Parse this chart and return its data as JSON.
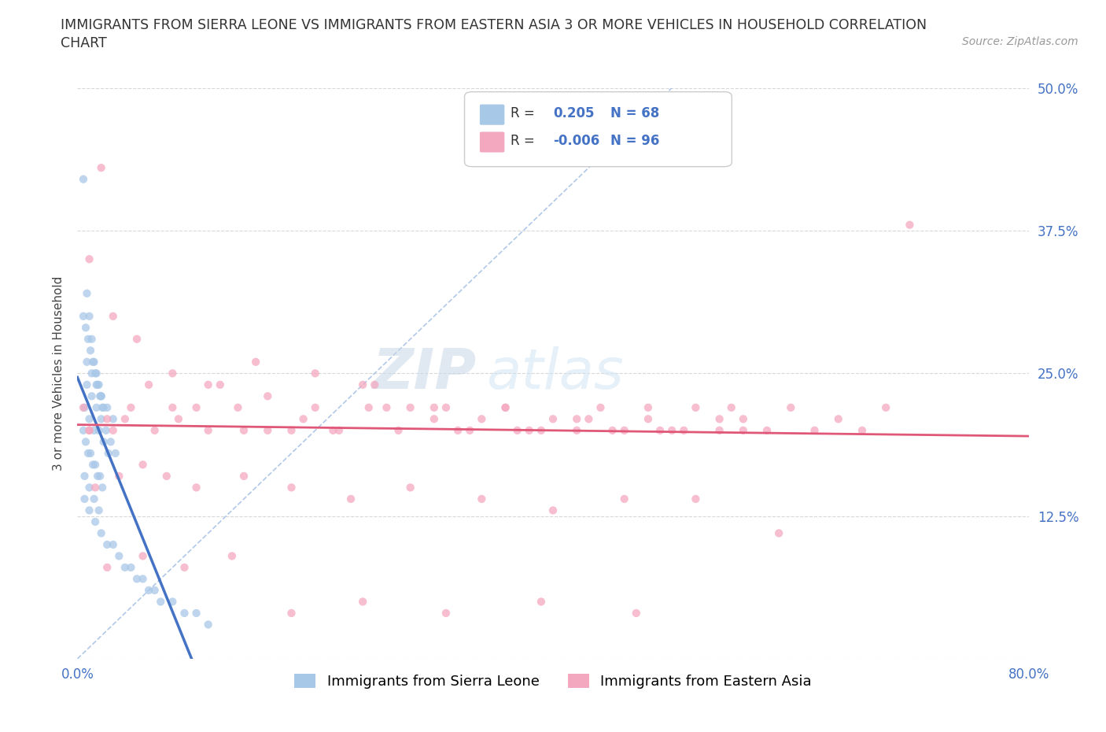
{
  "title_line1": "IMMIGRANTS FROM SIERRA LEONE VS IMMIGRANTS FROM EASTERN ASIA 3 OR MORE VEHICLES IN HOUSEHOLD CORRELATION",
  "title_line2": "CHART",
  "source": "Source: ZipAtlas.com",
  "ylabel": "3 or more Vehicles in Household",
  "xlim": [
    0.0,
    0.8
  ],
  "ylim": [
    0.0,
    0.5
  ],
  "xticks": [
    0.0,
    0.1,
    0.2,
    0.3,
    0.4,
    0.5,
    0.6,
    0.7,
    0.8
  ],
  "xticklabels_show": {
    "0": "0.0%",
    "8": "80.0%"
  },
  "yticks": [
    0.0,
    0.125,
    0.25,
    0.375,
    0.5
  ],
  "yticklabels_right": [
    "",
    "12.5%",
    "25.0%",
    "37.5%",
    "50.0%"
  ],
  "color_blue": "#a8c8e8",
  "color_pink": "#f4a8c0",
  "trend_blue": "#4472c4",
  "trend_pink": "#e05878",
  "R_blue": 0.205,
  "N_blue": 68,
  "R_pink": -0.006,
  "N_pink": 96,
  "legend_label_blue": "Immigrants from Sierra Leone",
  "legend_label_pink": "Immigrants from Eastern Asia",
  "watermark_zip": "ZIP",
  "watermark_atlas": "atlas",
  "background_color": "#ffffff",
  "grid_color": "#d8d8d8",
  "scatter_alpha": 0.75,
  "scatter_size": 55,
  "blue_x": [
    0.005,
    0.008,
    0.01,
    0.012,
    0.014,
    0.016,
    0.018,
    0.02,
    0.022,
    0.005,
    0.007,
    0.009,
    0.011,
    0.013,
    0.015,
    0.017,
    0.019,
    0.021,
    0.006,
    0.01,
    0.014,
    0.018,
    0.022,
    0.026,
    0.008,
    0.012,
    0.016,
    0.02,
    0.024,
    0.028,
    0.032,
    0.006,
    0.01,
    0.015,
    0.02,
    0.025,
    0.03,
    0.035,
    0.04,
    0.045,
    0.05,
    0.055,
    0.06,
    0.065,
    0.07,
    0.08,
    0.09,
    0.1,
    0.11,
    0.008,
    0.012,
    0.016,
    0.02,
    0.025,
    0.03,
    0.005,
    0.007,
    0.009,
    0.011,
    0.013,
    0.015,
    0.017,
    0.019,
    0.021,
    0.006,
    0.01,
    0.014,
    0.018
  ],
  "blue_y": [
    0.42,
    0.32,
    0.3,
    0.28,
    0.26,
    0.25,
    0.24,
    0.23,
    0.22,
    0.2,
    0.19,
    0.18,
    0.18,
    0.17,
    0.17,
    0.16,
    0.16,
    0.15,
    0.22,
    0.21,
    0.2,
    0.2,
    0.19,
    0.18,
    0.24,
    0.23,
    0.22,
    0.21,
    0.2,
    0.19,
    0.18,
    0.14,
    0.13,
    0.12,
    0.11,
    0.1,
    0.1,
    0.09,
    0.08,
    0.08,
    0.07,
    0.07,
    0.06,
    0.06,
    0.05,
    0.05,
    0.04,
    0.04,
    0.03,
    0.26,
    0.25,
    0.24,
    0.23,
    0.22,
    0.21,
    0.3,
    0.29,
    0.28,
    0.27,
    0.26,
    0.25,
    0.24,
    0.23,
    0.22,
    0.16,
    0.15,
    0.14,
    0.13
  ],
  "pink_x": [
    0.005,
    0.01,
    0.02,
    0.03,
    0.04,
    0.06,
    0.08,
    0.1,
    0.12,
    0.14,
    0.16,
    0.18,
    0.2,
    0.22,
    0.24,
    0.26,
    0.28,
    0.3,
    0.32,
    0.34,
    0.36,
    0.38,
    0.4,
    0.42,
    0.44,
    0.46,
    0.48,
    0.5,
    0.52,
    0.54,
    0.56,
    0.58,
    0.6,
    0.62,
    0.64,
    0.66,
    0.68,
    0.7,
    0.01,
    0.025,
    0.045,
    0.065,
    0.085,
    0.11,
    0.135,
    0.16,
    0.19,
    0.215,
    0.245,
    0.27,
    0.3,
    0.33,
    0.36,
    0.39,
    0.42,
    0.45,
    0.48,
    0.51,
    0.54,
    0.01,
    0.03,
    0.05,
    0.08,
    0.11,
    0.15,
    0.2,
    0.25,
    0.31,
    0.37,
    0.43,
    0.49,
    0.55,
    0.015,
    0.035,
    0.055,
    0.075,
    0.1,
    0.14,
    0.18,
    0.23,
    0.28,
    0.34,
    0.4,
    0.46,
    0.52,
    0.59,
    0.025,
    0.055,
    0.09,
    0.13,
    0.18,
    0.24,
    0.31,
    0.39,
    0.47,
    0.56
  ],
  "pink_y": [
    0.22,
    0.2,
    0.43,
    0.2,
    0.21,
    0.24,
    0.22,
    0.22,
    0.24,
    0.2,
    0.23,
    0.2,
    0.22,
    0.2,
    0.24,
    0.22,
    0.22,
    0.22,
    0.2,
    0.21,
    0.22,
    0.2,
    0.21,
    0.2,
    0.22,
    0.2,
    0.21,
    0.2,
    0.22,
    0.2,
    0.21,
    0.2,
    0.22,
    0.2,
    0.21,
    0.2,
    0.22,
    0.38,
    0.2,
    0.21,
    0.22,
    0.2,
    0.21,
    0.2,
    0.22,
    0.2,
    0.21,
    0.2,
    0.22,
    0.2,
    0.21,
    0.2,
    0.22,
    0.2,
    0.21,
    0.2,
    0.22,
    0.2,
    0.21,
    0.35,
    0.3,
    0.28,
    0.25,
    0.24,
    0.26,
    0.25,
    0.24,
    0.22,
    0.2,
    0.21,
    0.2,
    0.22,
    0.15,
    0.16,
    0.17,
    0.16,
    0.15,
    0.16,
    0.15,
    0.14,
    0.15,
    0.14,
    0.13,
    0.14,
    0.14,
    0.11,
    0.08,
    0.09,
    0.08,
    0.09,
    0.04,
    0.05,
    0.04,
    0.05,
    0.04,
    0.2
  ]
}
